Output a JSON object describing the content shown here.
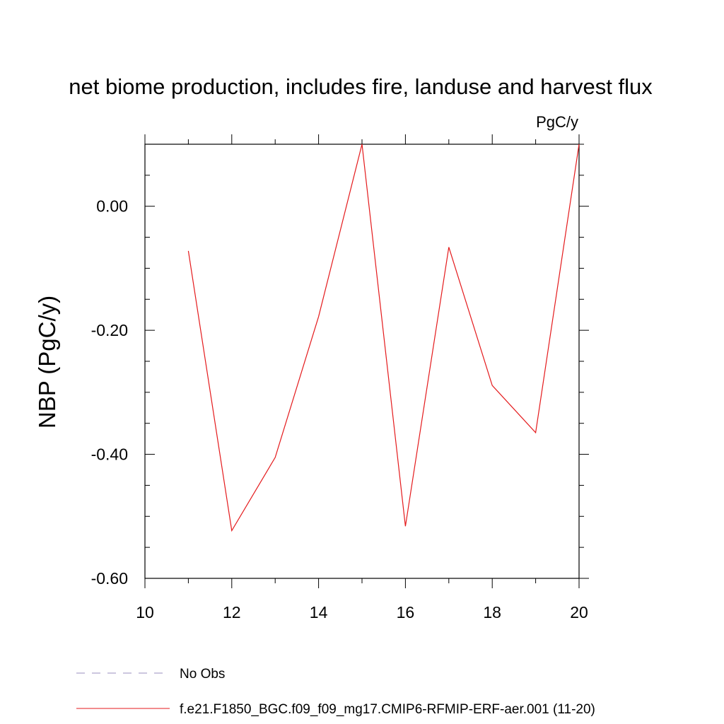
{
  "chart_data": {
    "type": "line",
    "title": "net biome production, includes fire, landuse and harvest flux",
    "units": "PgC/y",
    "xlabel": "",
    "ylabel": "NBP  (PgC/y)",
    "xlim": [
      10,
      20
    ],
    "ylim": [
      -0.6,
      0.1
    ],
    "xticks": [
      10,
      12,
      14,
      16,
      18,
      20
    ],
    "xtick_labels": [
      "10",
      "12",
      "14",
      "16",
      "18",
      "20"
    ],
    "yticks": [
      0.0,
      -0.2,
      -0.4,
      -0.6
    ],
    "ytick_labels": [
      "0.00",
      "-0.20",
      "-0.40",
      "-0.60"
    ],
    "grid": false,
    "legend_position": "bottom",
    "series": [
      {
        "name": "f.e21.F1850_BGC.f09_f09_mg17.CMIP6-RFMIP-ERF-aer.001 (11-20)",
        "color": "#e41a1c",
        "style": "solid",
        "x": [
          11,
          12,
          13,
          14,
          15,
          16,
          17,
          18,
          19,
          20
        ],
        "y": [
          -0.072,
          -0.523,
          -0.405,
          -0.178,
          0.1,
          -0.516,
          -0.066,
          -0.289,
          -0.365,
          0.1
        ]
      }
    ],
    "legend": [
      {
        "label": "No Obs",
        "color": "#9a8fbf",
        "style": "dashed"
      },
      {
        "label": "f.e21.F1850_BGC.f09_f09_mg17.CMIP6-RFMIP-ERF-aer.001 (11-20)",
        "color": "#e41a1c",
        "style": "solid"
      }
    ]
  }
}
